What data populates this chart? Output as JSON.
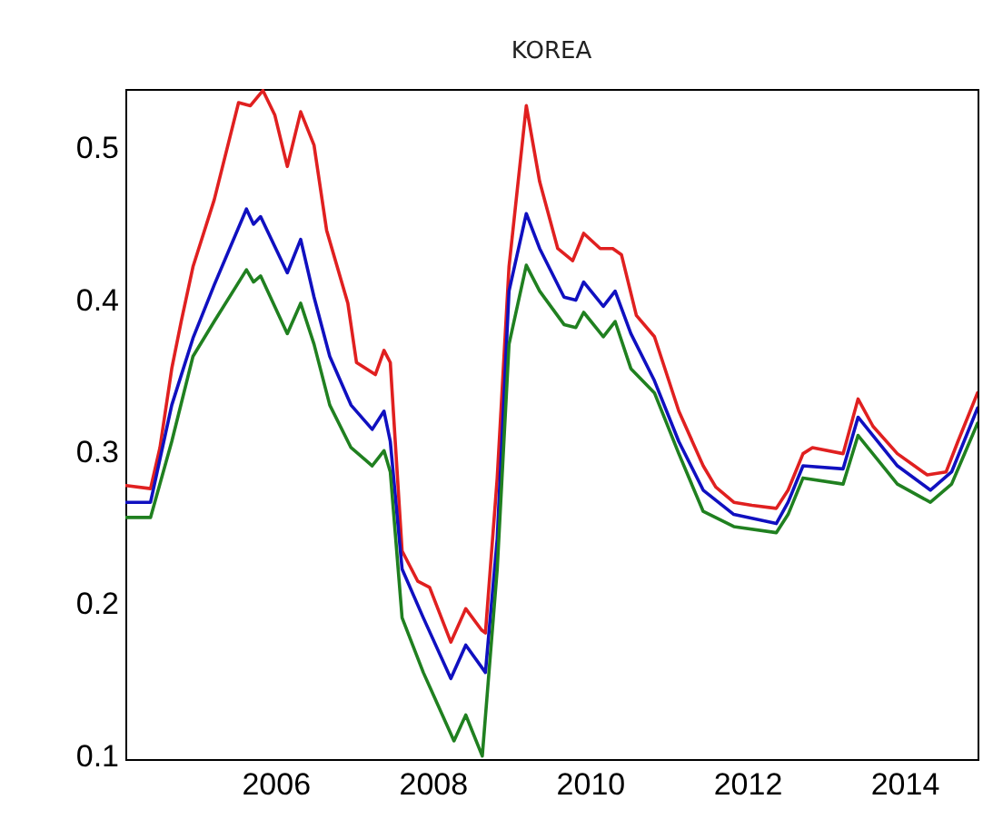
{
  "chart_data": {
    "type": "line",
    "title": "KOREA",
    "xlim": [
      2004.09,
      2014.93
    ],
    "xticks": [
      2006,
      2008,
      2010,
      2012,
      2014
    ],
    "ylim": [
      0.098,
      0.539
    ],
    "yticks": [
      0.1,
      0.2,
      0.3,
      0.4,
      0.5
    ],
    "grid": false,
    "line_style": "solid",
    "series": [
      {
        "color": "#e02020",
        "x": [
          2004.1,
          2004.41,
          2004.53,
          2004.68,
          2004.8,
          2004.95,
          2005.22,
          2005.53,
          2005.68,
          2005.84,
          2005.99,
          2006.15,
          2006.32,
          2006.49,
          2006.65,
          2006.92,
          2007.03,
          2007.27,
          2007.38,
          2007.46,
          2007.61,
          2007.81,
          2007.96,
          2008.23,
          2008.42,
          2008.62,
          2008.67,
          2008.82,
          2008.97,
          2009.19,
          2009.36,
          2009.59,
          2009.78,
          2009.92,
          2010.13,
          2010.29,
          2010.4,
          2010.59,
          2010.82,
          2011.13,
          2011.44,
          2011.6,
          2011.83,
          2012.06,
          2012.37,
          2012.52,
          2012.71,
          2012.83,
          2013.22,
          2013.41,
          2013.6,
          2013.91,
          2014.29,
          2014.53,
          2014.68,
          2014.93
        ],
        "values": [
          0.278,
          0.276,
          0.303,
          0.355,
          0.386,
          0.422,
          0.466,
          0.53,
          0.528,
          0.538,
          0.522,
          0.488,
          0.524,
          0.502,
          0.446,
          0.398,
          0.359,
          0.351,
          0.367,
          0.359,
          0.235,
          0.215,
          0.211,
          0.175,
          0.197,
          0.183,
          0.181,
          0.283,
          0.422,
          0.528,
          0.478,
          0.434,
          0.426,
          0.444,
          0.434,
          0.434,
          0.43,
          0.39,
          0.376,
          0.327,
          0.291,
          0.277,
          0.267,
          0.265,
          0.263,
          0.275,
          0.299,
          0.303,
          0.299,
          0.335,
          0.317,
          0.299,
          0.285,
          0.287,
          0.307,
          0.339
        ]
      },
      {
        "color": "#1010c0",
        "x": [
          2004.1,
          2004.41,
          2004.68,
          2004.95,
          2005.22,
          2005.63,
          2005.72,
          2005.81,
          2006.15,
          2006.32,
          2006.49,
          2006.69,
          2006.96,
          2007.23,
          2007.38,
          2007.46,
          2007.61,
          2007.88,
          2008.23,
          2008.42,
          2008.67,
          2008.82,
          2008.97,
          2009.19,
          2009.36,
          2009.67,
          2009.82,
          2009.92,
          2010.17,
          2010.32,
          2010.52,
          2010.82,
          2011.13,
          2011.44,
          2011.83,
          2012.37,
          2012.52,
          2012.71,
          2013.22,
          2013.41,
          2013.91,
          2014.33,
          2014.6,
          2014.93
        ],
        "values": [
          0.267,
          0.267,
          0.331,
          0.375,
          0.41,
          0.46,
          0.45,
          0.455,
          0.418,
          0.44,
          0.402,
          0.363,
          0.331,
          0.315,
          0.327,
          0.307,
          0.223,
          0.191,
          0.151,
          0.173,
          0.155,
          0.243,
          0.406,
          0.457,
          0.434,
          0.402,
          0.4,
          0.412,
          0.396,
          0.406,
          0.378,
          0.347,
          0.307,
          0.275,
          0.259,
          0.253,
          0.267,
          0.291,
          0.289,
          0.323,
          0.291,
          0.275,
          0.287,
          0.329
        ]
      },
      {
        "color": "#208020",
        "x": [
          2004.1,
          2004.41,
          2004.68,
          2004.95,
          2005.22,
          2005.63,
          2005.72,
          2005.81,
          2006.15,
          2006.32,
          2006.49,
          2006.69,
          2006.96,
          2007.23,
          2007.38,
          2007.46,
          2007.61,
          2007.88,
          2008.27,
          2008.42,
          2008.63,
          2008.82,
          2008.97,
          2009.19,
          2009.36,
          2009.67,
          2009.82,
          2009.92,
          2010.17,
          2010.32,
          2010.52,
          2010.82,
          2011.13,
          2011.44,
          2011.83,
          2012.37,
          2012.52,
          2012.71,
          2013.22,
          2013.41,
          2013.91,
          2014.33,
          2014.6,
          2014.93
        ],
        "values": [
          0.257,
          0.257,
          0.307,
          0.363,
          0.386,
          0.42,
          0.412,
          0.416,
          0.378,
          0.398,
          0.371,
          0.331,
          0.303,
          0.291,
          0.301,
          0.287,
          0.191,
          0.155,
          0.11,
          0.127,
          0.1,
          0.223,
          0.371,
          0.423,
          0.406,
          0.384,
          0.382,
          0.392,
          0.376,
          0.386,
          0.355,
          0.339,
          0.299,
          0.261,
          0.251,
          0.247,
          0.259,
          0.283,
          0.279,
          0.311,
          0.279,
          0.267,
          0.279,
          0.319
        ]
      }
    ]
  }
}
